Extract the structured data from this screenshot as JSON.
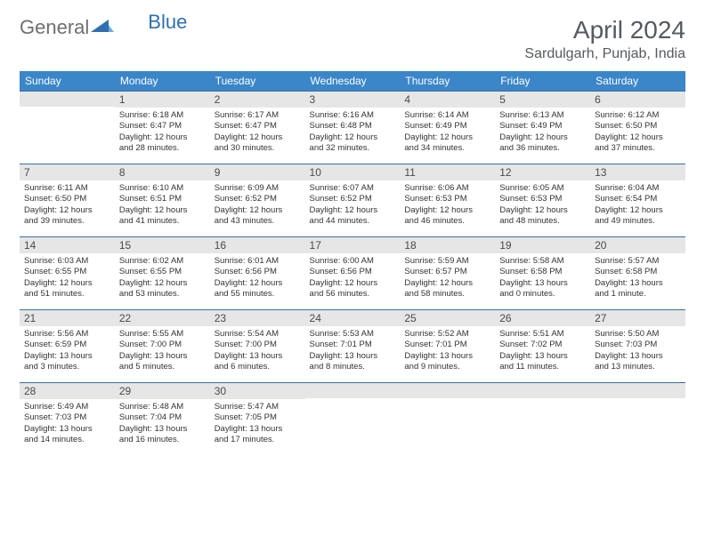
{
  "brand": {
    "part1": "General",
    "part2": "Blue"
  },
  "title": "April 2024",
  "location": "Sardulgarh, Punjab, India",
  "colors": {
    "header_bg": "#3a86c8",
    "header_fg": "#ffffff",
    "daynum_bg": "#e6e6e6",
    "daynum_border": "#3a6ea0",
    "text": "#333333",
    "title_color": "#555a5f",
    "logo_gray": "#6f6f6f",
    "logo_blue": "#2f6fb0"
  },
  "weekdays": [
    "Sunday",
    "Monday",
    "Tuesday",
    "Wednesday",
    "Thursday",
    "Friday",
    "Saturday"
  ],
  "weeks": [
    [
      null,
      {
        "n": "1",
        "sr": "Sunrise: 6:18 AM",
        "ss": "Sunset: 6:47 PM",
        "d1": "Daylight: 12 hours",
        "d2": "and 28 minutes."
      },
      {
        "n": "2",
        "sr": "Sunrise: 6:17 AM",
        "ss": "Sunset: 6:47 PM",
        "d1": "Daylight: 12 hours",
        "d2": "and 30 minutes."
      },
      {
        "n": "3",
        "sr": "Sunrise: 6:16 AM",
        "ss": "Sunset: 6:48 PM",
        "d1": "Daylight: 12 hours",
        "d2": "and 32 minutes."
      },
      {
        "n": "4",
        "sr": "Sunrise: 6:14 AM",
        "ss": "Sunset: 6:49 PM",
        "d1": "Daylight: 12 hours",
        "d2": "and 34 minutes."
      },
      {
        "n": "5",
        "sr": "Sunrise: 6:13 AM",
        "ss": "Sunset: 6:49 PM",
        "d1": "Daylight: 12 hours",
        "d2": "and 36 minutes."
      },
      {
        "n": "6",
        "sr": "Sunrise: 6:12 AM",
        "ss": "Sunset: 6:50 PM",
        "d1": "Daylight: 12 hours",
        "d2": "and 37 minutes."
      }
    ],
    [
      {
        "n": "7",
        "sr": "Sunrise: 6:11 AM",
        "ss": "Sunset: 6:50 PM",
        "d1": "Daylight: 12 hours",
        "d2": "and 39 minutes."
      },
      {
        "n": "8",
        "sr": "Sunrise: 6:10 AM",
        "ss": "Sunset: 6:51 PM",
        "d1": "Daylight: 12 hours",
        "d2": "and 41 minutes."
      },
      {
        "n": "9",
        "sr": "Sunrise: 6:09 AM",
        "ss": "Sunset: 6:52 PM",
        "d1": "Daylight: 12 hours",
        "d2": "and 43 minutes."
      },
      {
        "n": "10",
        "sr": "Sunrise: 6:07 AM",
        "ss": "Sunset: 6:52 PM",
        "d1": "Daylight: 12 hours",
        "d2": "and 44 minutes."
      },
      {
        "n": "11",
        "sr": "Sunrise: 6:06 AM",
        "ss": "Sunset: 6:53 PM",
        "d1": "Daylight: 12 hours",
        "d2": "and 46 minutes."
      },
      {
        "n": "12",
        "sr": "Sunrise: 6:05 AM",
        "ss": "Sunset: 6:53 PM",
        "d1": "Daylight: 12 hours",
        "d2": "and 48 minutes."
      },
      {
        "n": "13",
        "sr": "Sunrise: 6:04 AM",
        "ss": "Sunset: 6:54 PM",
        "d1": "Daylight: 12 hours",
        "d2": "and 49 minutes."
      }
    ],
    [
      {
        "n": "14",
        "sr": "Sunrise: 6:03 AM",
        "ss": "Sunset: 6:55 PM",
        "d1": "Daylight: 12 hours",
        "d2": "and 51 minutes."
      },
      {
        "n": "15",
        "sr": "Sunrise: 6:02 AM",
        "ss": "Sunset: 6:55 PM",
        "d1": "Daylight: 12 hours",
        "d2": "and 53 minutes."
      },
      {
        "n": "16",
        "sr": "Sunrise: 6:01 AM",
        "ss": "Sunset: 6:56 PM",
        "d1": "Daylight: 12 hours",
        "d2": "and 55 minutes."
      },
      {
        "n": "17",
        "sr": "Sunrise: 6:00 AM",
        "ss": "Sunset: 6:56 PM",
        "d1": "Daylight: 12 hours",
        "d2": "and 56 minutes."
      },
      {
        "n": "18",
        "sr": "Sunrise: 5:59 AM",
        "ss": "Sunset: 6:57 PM",
        "d1": "Daylight: 12 hours",
        "d2": "and 58 minutes."
      },
      {
        "n": "19",
        "sr": "Sunrise: 5:58 AM",
        "ss": "Sunset: 6:58 PM",
        "d1": "Daylight: 13 hours",
        "d2": "and 0 minutes."
      },
      {
        "n": "20",
        "sr": "Sunrise: 5:57 AM",
        "ss": "Sunset: 6:58 PM",
        "d1": "Daylight: 13 hours",
        "d2": "and 1 minute."
      }
    ],
    [
      {
        "n": "21",
        "sr": "Sunrise: 5:56 AM",
        "ss": "Sunset: 6:59 PM",
        "d1": "Daylight: 13 hours",
        "d2": "and 3 minutes."
      },
      {
        "n": "22",
        "sr": "Sunrise: 5:55 AM",
        "ss": "Sunset: 7:00 PM",
        "d1": "Daylight: 13 hours",
        "d2": "and 5 minutes."
      },
      {
        "n": "23",
        "sr": "Sunrise: 5:54 AM",
        "ss": "Sunset: 7:00 PM",
        "d1": "Daylight: 13 hours",
        "d2": "and 6 minutes."
      },
      {
        "n": "24",
        "sr": "Sunrise: 5:53 AM",
        "ss": "Sunset: 7:01 PM",
        "d1": "Daylight: 13 hours",
        "d2": "and 8 minutes."
      },
      {
        "n": "25",
        "sr": "Sunrise: 5:52 AM",
        "ss": "Sunset: 7:01 PM",
        "d1": "Daylight: 13 hours",
        "d2": "and 9 minutes."
      },
      {
        "n": "26",
        "sr": "Sunrise: 5:51 AM",
        "ss": "Sunset: 7:02 PM",
        "d1": "Daylight: 13 hours",
        "d2": "and 11 minutes."
      },
      {
        "n": "27",
        "sr": "Sunrise: 5:50 AM",
        "ss": "Sunset: 7:03 PM",
        "d1": "Daylight: 13 hours",
        "d2": "and 13 minutes."
      }
    ],
    [
      {
        "n": "28",
        "sr": "Sunrise: 5:49 AM",
        "ss": "Sunset: 7:03 PM",
        "d1": "Daylight: 13 hours",
        "d2": "and 14 minutes."
      },
      {
        "n": "29",
        "sr": "Sunrise: 5:48 AM",
        "ss": "Sunset: 7:04 PM",
        "d1": "Daylight: 13 hours",
        "d2": "and 16 minutes."
      },
      {
        "n": "30",
        "sr": "Sunrise: 5:47 AM",
        "ss": "Sunset: 7:05 PM",
        "d1": "Daylight: 13 hours",
        "d2": "and 17 minutes."
      },
      null,
      null,
      null,
      null
    ]
  ]
}
